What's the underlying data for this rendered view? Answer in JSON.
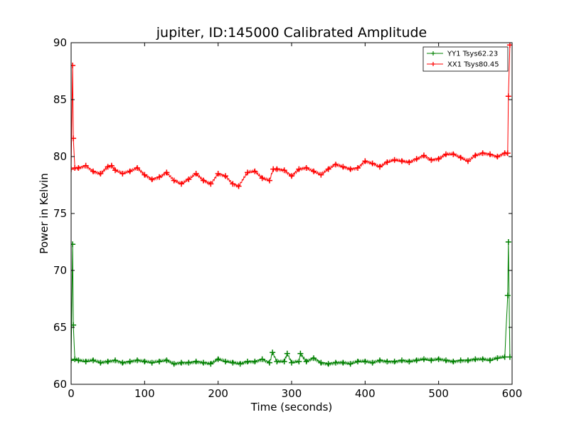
{
  "chart_data": {
    "type": "line",
    "title": "jupiter, ID:145000 Calibrated Amplitude",
    "xlabel": "Time (seconds)",
    "ylabel": "Power in Kelvin",
    "xlim": [
      0,
      600
    ],
    "ylim": [
      60,
      90
    ],
    "xticks": [
      0,
      100,
      200,
      300,
      400,
      500,
      600
    ],
    "yticks": [
      60,
      65,
      70,
      75,
      80,
      85,
      90
    ],
    "grid": false,
    "legend_position": "top-right",
    "series": [
      {
        "name": "YY1 Tsys62.23",
        "color": "#008000",
        "marker": "+",
        "x": [
          0,
          2,
          3,
          5,
          10,
          20,
          30,
          40,
          50,
          60,
          70,
          80,
          90,
          100,
          110,
          120,
          130,
          140,
          150,
          160,
          170,
          180,
          190,
          200,
          210,
          220,
          230,
          240,
          250,
          260,
          270,
          274,
          280,
          290,
          294,
          300,
          310,
          312,
          320,
          330,
          340,
          350,
          360,
          370,
          380,
          390,
          400,
          410,
          420,
          430,
          440,
          450,
          460,
          470,
          480,
          490,
          500,
          510,
          520,
          530,
          540,
          550,
          560,
          570,
          580,
          590,
          594,
          595,
          597
        ],
        "y": [
          62.1,
          72.3,
          65.2,
          62.2,
          62.1,
          62.0,
          62.1,
          61.9,
          62.0,
          62.1,
          61.9,
          62.0,
          62.1,
          62.0,
          61.9,
          62.0,
          62.1,
          61.8,
          61.9,
          61.9,
          62.0,
          61.9,
          61.8,
          62.2,
          62.0,
          61.9,
          61.8,
          62.0,
          62.0,
          62.2,
          61.9,
          62.8,
          62.0,
          62.0,
          62.7,
          61.9,
          62.0,
          62.7,
          62.0,
          62.3,
          61.9,
          61.8,
          61.9,
          61.9,
          61.8,
          62.0,
          62.0,
          61.9,
          62.1,
          62.0,
          62.0,
          62.1,
          62.0,
          62.1,
          62.2,
          62.1,
          62.2,
          62.1,
          62.0,
          62.1,
          62.1,
          62.2,
          62.2,
          62.1,
          62.3,
          62.4,
          67.8,
          72.5,
          62.4
        ]
      },
      {
        "name": "XX1 Tsys80.45",
        "color": "#ff0000",
        "marker": "+",
        "x": [
          0,
          2,
          3,
          5,
          10,
          20,
          30,
          40,
          50,
          55,
          60,
          70,
          80,
          90,
          100,
          110,
          120,
          130,
          140,
          150,
          160,
          170,
          180,
          190,
          200,
          210,
          220,
          228,
          240,
          250,
          260,
          270,
          275,
          280,
          290,
          300,
          310,
          320,
          330,
          340,
          350,
          360,
          370,
          380,
          390,
          400,
          410,
          420,
          430,
          440,
          450,
          460,
          470,
          480,
          490,
          500,
          510,
          520,
          530,
          540,
          550,
          560,
          570,
          580,
          590,
          594,
          595,
          597
        ],
        "y": [
          78.9,
          88.0,
          81.6,
          79.0,
          79.0,
          79.2,
          78.7,
          78.5,
          79.1,
          79.2,
          78.8,
          78.5,
          78.7,
          79.0,
          78.4,
          78.0,
          78.2,
          78.6,
          77.9,
          77.6,
          78.0,
          78.5,
          77.9,
          77.6,
          78.5,
          78.3,
          77.6,
          77.4,
          78.6,
          78.7,
          78.1,
          77.9,
          78.9,
          78.9,
          78.8,
          78.3,
          78.9,
          79.0,
          78.7,
          78.4,
          78.9,
          79.3,
          79.1,
          78.9,
          79.0,
          79.6,
          79.4,
          79.1,
          79.5,
          79.7,
          79.6,
          79.5,
          79.8,
          80.1,
          79.7,
          79.8,
          80.2,
          80.2,
          79.9,
          79.6,
          80.1,
          80.3,
          80.2,
          80.0,
          80.3,
          80.3,
          85.3,
          89.8
        ]
      }
    ]
  }
}
